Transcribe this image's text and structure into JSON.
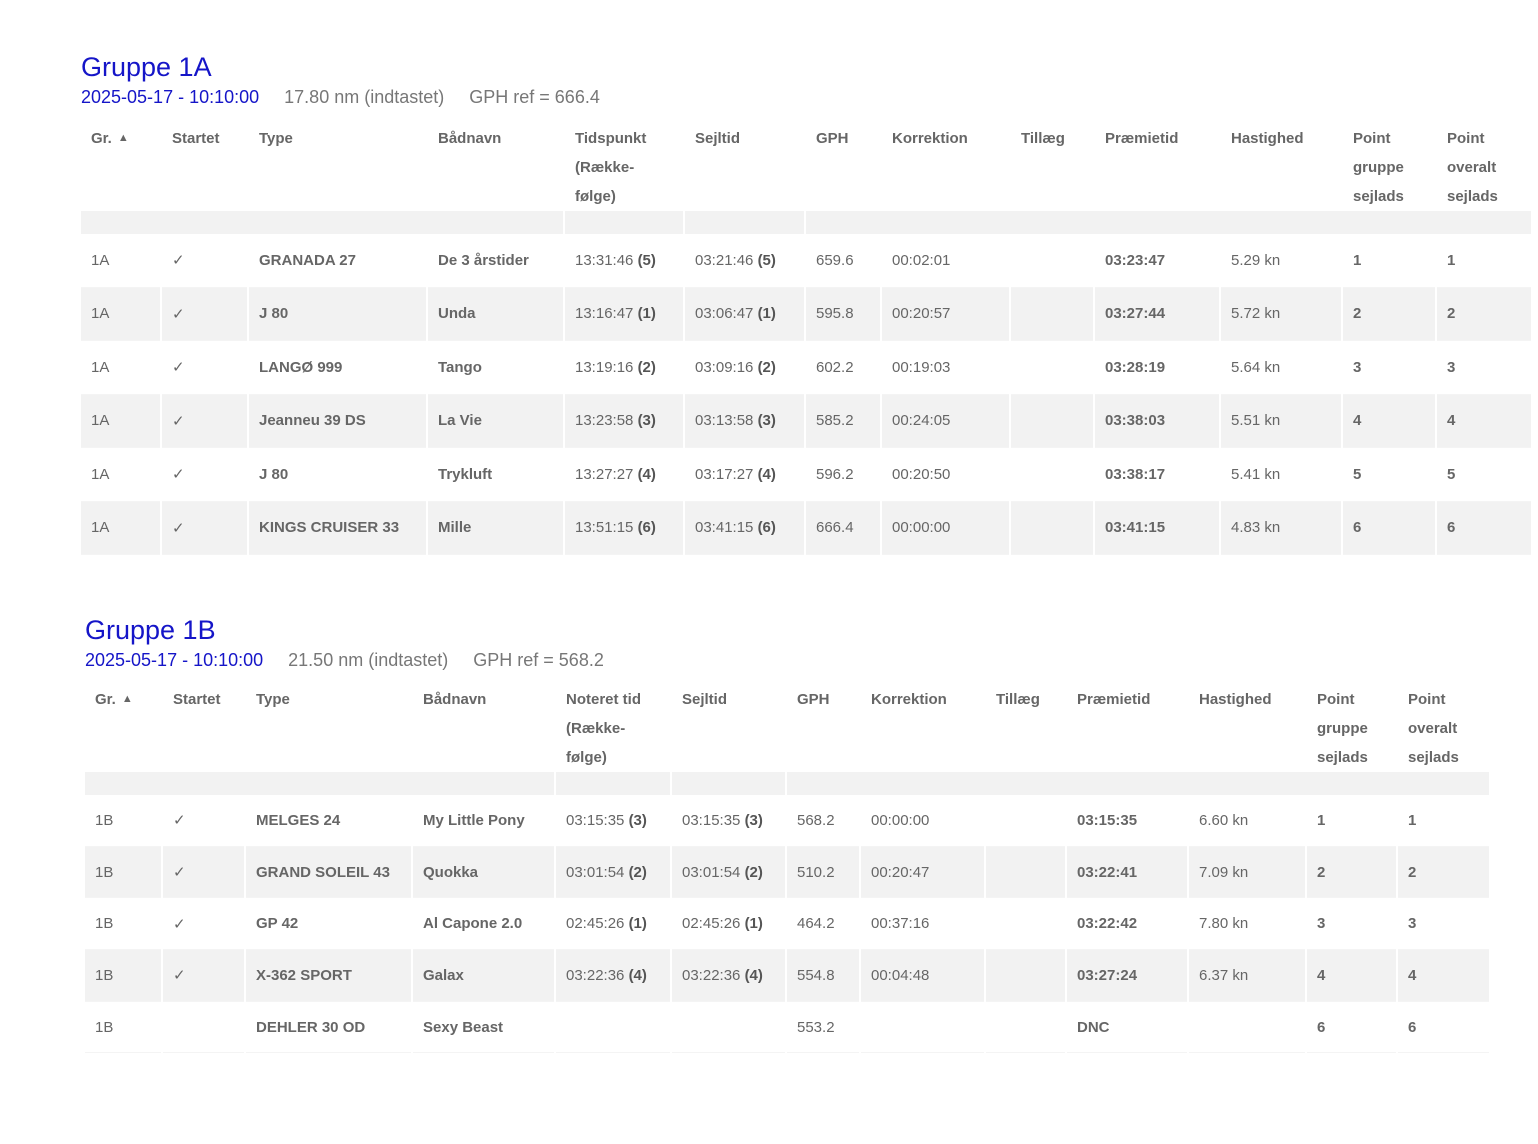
{
  "groups": [
    {
      "title": "Gruppe 1A",
      "date": "2025-05-17 - 10:10:00",
      "distance": "17.80 nm (indtastet)",
      "gph_ref": "GPH ref = 666.4",
      "headers": {
        "gr": "Gr.",
        "sort_icon": "sort-ascending-icon",
        "startet": "Startet",
        "type": "Type",
        "badnavn": "Bådnavn",
        "tid_lines": [
          "Tidspunkt",
          "(Række-",
          "følge)"
        ],
        "sejltid": "Sejltid",
        "gph": "GPH",
        "korrektion": "Korrektion",
        "tillaeg": "Tillæg",
        "praemietid": "Præmietid",
        "hastighed": "Hastighed",
        "point_gruppe_lines": [
          "Point",
          "gruppe",
          "sejlads"
        ],
        "point_overalt_lines": [
          "Point",
          "overalt",
          "sejlads"
        ]
      },
      "rows": [
        {
          "gr": "1A",
          "startet": "✓",
          "type": "GRANADA 27",
          "badnavn": "De 3 årstider",
          "tid": "13:31:46",
          "tid_rank": "(5)",
          "sejltid": "03:21:46",
          "sejltid_rank": "(5)",
          "gph": "659.6",
          "korrektion": "00:02:01",
          "tillaeg": "",
          "praemietid": "03:23:47",
          "hastighed": "5.29 kn",
          "point_gruppe": "1",
          "point_overalt": "1"
        },
        {
          "gr": "1A",
          "startet": "✓",
          "type": "J 80",
          "badnavn": "Unda",
          "tid": "13:16:47",
          "tid_rank": "(1)",
          "sejltid": "03:06:47",
          "sejltid_rank": "(1)",
          "gph": "595.8",
          "korrektion": "00:20:57",
          "tillaeg": "",
          "praemietid": "03:27:44",
          "hastighed": "5.72 kn",
          "point_gruppe": "2",
          "point_overalt": "2"
        },
        {
          "gr": "1A",
          "startet": "✓",
          "type": "LANGØ 999",
          "badnavn": "Tango",
          "tid": "13:19:16",
          "tid_rank": "(2)",
          "sejltid": "03:09:16",
          "sejltid_rank": "(2)",
          "gph": "602.2",
          "korrektion": "00:19:03",
          "tillaeg": "",
          "praemietid": "03:28:19",
          "hastighed": "5.64 kn",
          "point_gruppe": "3",
          "point_overalt": "3"
        },
        {
          "gr": "1A",
          "startet": "✓",
          "type": "Jeanneu 39 DS",
          "badnavn": "La Vie",
          "tid": "13:23:58",
          "tid_rank": "(3)",
          "sejltid": "03:13:58",
          "sejltid_rank": "(3)",
          "gph": "585.2",
          "korrektion": "00:24:05",
          "tillaeg": "",
          "praemietid": "03:38:03",
          "hastighed": "5.51 kn",
          "point_gruppe": "4",
          "point_overalt": "4"
        },
        {
          "gr": "1A",
          "startet": "✓",
          "type": "J 80",
          "badnavn": "Trykluft",
          "tid": "13:27:27",
          "tid_rank": "(4)",
          "sejltid": "03:17:27",
          "sejltid_rank": "(4)",
          "gph": "596.2",
          "korrektion": "00:20:50",
          "tillaeg": "",
          "praemietid": "03:38:17",
          "hastighed": "5.41 kn",
          "point_gruppe": "5",
          "point_overalt": "5"
        },
        {
          "gr": "1A",
          "startet": "✓",
          "type": "KINGS CRUISER 33",
          "badnavn": "Mille",
          "tid": "13:51:15",
          "tid_rank": "(6)",
          "sejltid": "03:41:15",
          "sejltid_rank": "(6)",
          "gph": "666.4",
          "korrektion": "00:00:00",
          "tillaeg": "",
          "praemietid": "03:41:15",
          "hastighed": "4.83 kn",
          "point_gruppe": "6",
          "point_overalt": "6"
        }
      ]
    },
    {
      "title": "Gruppe 1B",
      "date": "2025-05-17 - 10:10:00",
      "distance": "21.50 nm (indtastet)",
      "gph_ref": "GPH ref = 568.2",
      "headers": {
        "gr": "Gr.",
        "sort_icon": "sort-ascending-icon",
        "startet": "Startet",
        "type": "Type",
        "badnavn": "Bådnavn",
        "tid_lines": [
          "Noteret tid",
          "(Række-",
          "følge)"
        ],
        "sejltid": "Sejltid",
        "gph": "GPH",
        "korrektion": "Korrektion",
        "tillaeg": "Tillæg",
        "praemietid": "Præmietid",
        "hastighed": "Hastighed",
        "point_gruppe_lines": [
          "Point",
          "gruppe",
          "sejlads"
        ],
        "point_overalt_lines": [
          "Point",
          "overalt",
          "sejlads"
        ]
      },
      "rows": [
        {
          "gr": "1B",
          "startet": "✓",
          "type": "MELGES 24",
          "badnavn": "My Little Pony",
          "tid": "03:15:35",
          "tid_rank": "(3)",
          "sejltid": "03:15:35",
          "sejltid_rank": "(3)",
          "gph": "568.2",
          "korrektion": "00:00:00",
          "tillaeg": "",
          "praemietid": "03:15:35",
          "hastighed": "6.60 kn",
          "point_gruppe": "1",
          "point_overalt": "1"
        },
        {
          "gr": "1B",
          "startet": "✓",
          "type": "GRAND SOLEIL 43",
          "badnavn": "Quokka",
          "tid": "03:01:54",
          "tid_rank": "(2)",
          "sejltid": "03:01:54",
          "sejltid_rank": "(2)",
          "gph": "510.2",
          "korrektion": "00:20:47",
          "tillaeg": "",
          "praemietid": "03:22:41",
          "hastighed": "7.09 kn",
          "point_gruppe": "2",
          "point_overalt": "2"
        },
        {
          "gr": "1B",
          "startet": "✓",
          "type": "GP 42",
          "badnavn": "Al Capone 2.0",
          "tid": "02:45:26",
          "tid_rank": "(1)",
          "sejltid": "02:45:26",
          "sejltid_rank": "(1)",
          "gph": "464.2",
          "korrektion": "00:37:16",
          "tillaeg": "",
          "praemietid": "03:22:42",
          "hastighed": "7.80 kn",
          "point_gruppe": "3",
          "point_overalt": "3"
        },
        {
          "gr": "1B",
          "startet": "✓",
          "type": "X-362 SPORT",
          "badnavn": "Galax",
          "tid": "03:22:36",
          "tid_rank": "(4)",
          "sejltid": "03:22:36",
          "sejltid_rank": "(4)",
          "gph": "554.8",
          "korrektion": "00:04:48",
          "tillaeg": "",
          "praemietid": "03:27:24",
          "hastighed": "6.37 kn",
          "point_gruppe": "4",
          "point_overalt": "4"
        },
        {
          "gr": "1B",
          "startet": "",
          "type": "DEHLER 30 OD",
          "badnavn": "Sexy Beast",
          "tid": "",
          "tid_rank": "",
          "sejltid": "",
          "sejltid_rank": "",
          "gph": "553.2",
          "korrektion": "",
          "tillaeg": "",
          "praemietid": "DNC",
          "hastighed": "",
          "point_gruppe": "6",
          "point_overalt": "6"
        }
      ]
    }
  ]
}
